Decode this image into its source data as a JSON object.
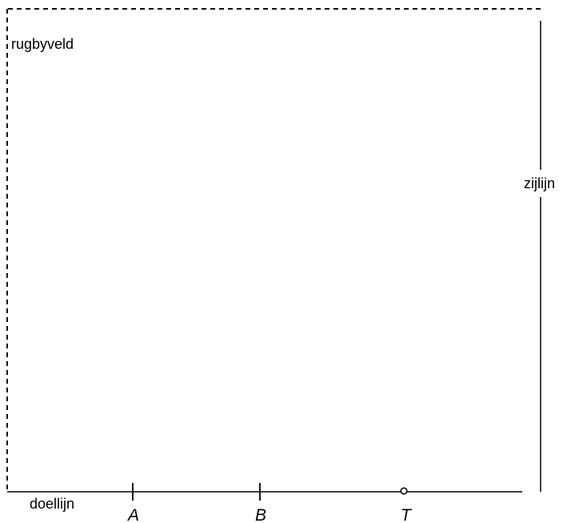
{
  "diagram": {
    "field_label": "rugbyveld",
    "sideline_label": "zijlijn",
    "goal_line_label": "doellijn",
    "points": [
      {
        "label": "A",
        "marker": "tick"
      },
      {
        "label": "B",
        "marker": "tick"
      },
      {
        "label": "T",
        "marker": "open-circle"
      }
    ],
    "line_color": "#000000",
    "boundary_style": "dashed"
  }
}
